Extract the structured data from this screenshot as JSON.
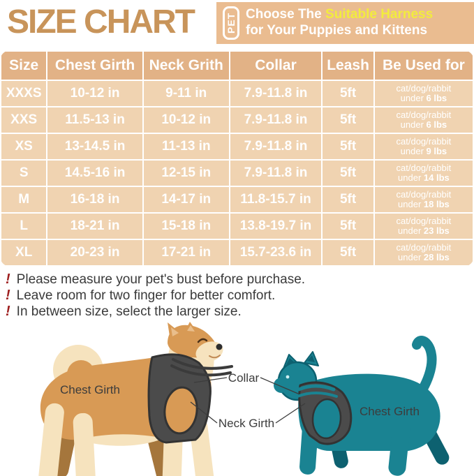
{
  "header": {
    "title": "SIZE CHART",
    "badge": "PET",
    "tagline_white_1": "Choose The ",
    "tagline_highlight": "Suitable Harness",
    "tagline_line2": "for Your Puppies and Kittens"
  },
  "table": {
    "columns": [
      "Size",
      "Chest Girth",
      "Neck Grith",
      "Collar",
      "Leash",
      "Be Used for"
    ],
    "rows": [
      {
        "size": "XXXS",
        "chest": "10-12 in",
        "neck": "9-11 in",
        "collar": "7.9-11.8 in",
        "leash": "5ft",
        "used_species": "cat/dog/rabbit",
        "used_prefix": "under ",
        "used_weight": "6 lbs"
      },
      {
        "size": "XXS",
        "chest": "11.5-13 in",
        "neck": "10-12 in",
        "collar": "7.9-11.8 in",
        "leash": "5ft",
        "used_species": "cat/dog/rabbit",
        "used_prefix": "under ",
        "used_weight": "6 lbs"
      },
      {
        "size": "XS",
        "chest": "13-14.5 in",
        "neck": "11-13 in",
        "collar": "7.9-11.8 in",
        "leash": "5ft",
        "used_species": "cat/dog/rabbit",
        "used_prefix": "under ",
        "used_weight": "9 lbs"
      },
      {
        "size": "S",
        "chest": "14.5-16 in",
        "neck": "12-15 in",
        "collar": "7.9-11.8 in",
        "leash": "5ft",
        "used_species": "cat/dog/rabbit",
        "used_prefix": "under ",
        "used_weight": "14 lbs"
      },
      {
        "size": "M",
        "chest": "16-18 in",
        "neck": "14-17 in",
        "collar": "11.8-15.7 in",
        "leash": "5ft",
        "used_species": "cat/dog/rabbit",
        "used_prefix": "under ",
        "used_weight": "18 lbs"
      },
      {
        "size": "L",
        "chest": "18-21 in",
        "neck": "15-18 in",
        "collar": "13.8-19.7 in",
        "leash": "5ft",
        "used_species": "cat/dog/rabbit",
        "used_prefix": "under ",
        "used_weight": "23 lbs"
      },
      {
        "size": "XL",
        "chest": "20-23 in",
        "neck": "17-21 in",
        "collar": "15.7-23.6 in",
        "leash": "5ft",
        "used_species": "cat/dog/rabbit",
        "used_prefix": "under ",
        "used_weight": "28 lbs"
      }
    ]
  },
  "notes": [
    {
      "mark": "!",
      "text": "Please measure your pet's bust before purchase."
    },
    {
      "mark": "!",
      "text": "Leave room for two finger for better comfort."
    },
    {
      "mark": "!",
      "text": "In between size, select the larger size."
    }
  ],
  "diagram": {
    "dog_chest_label": "Chest Girth",
    "collar_label": "Collar",
    "neck_girth_label": "Neck Girth",
    "cat_chest_label": "Chest Girth"
  },
  "colors": {
    "title_tan": "#C8945A",
    "banner_bg": "#EABC90",
    "highlight_yellow": "#F2EC3D",
    "table_header_bg": "#E2B286",
    "table_row_bg": "#F0D3B1",
    "table_text": "#FFFFFF",
    "note_text": "#3A3A3A",
    "note_mark_red": "#9E2020",
    "dog_orange": "#D89A55",
    "dog_cream": "#F6E3BE",
    "cat_teal": "#1A8392",
    "harness_gray": "#4B4B4B"
  }
}
